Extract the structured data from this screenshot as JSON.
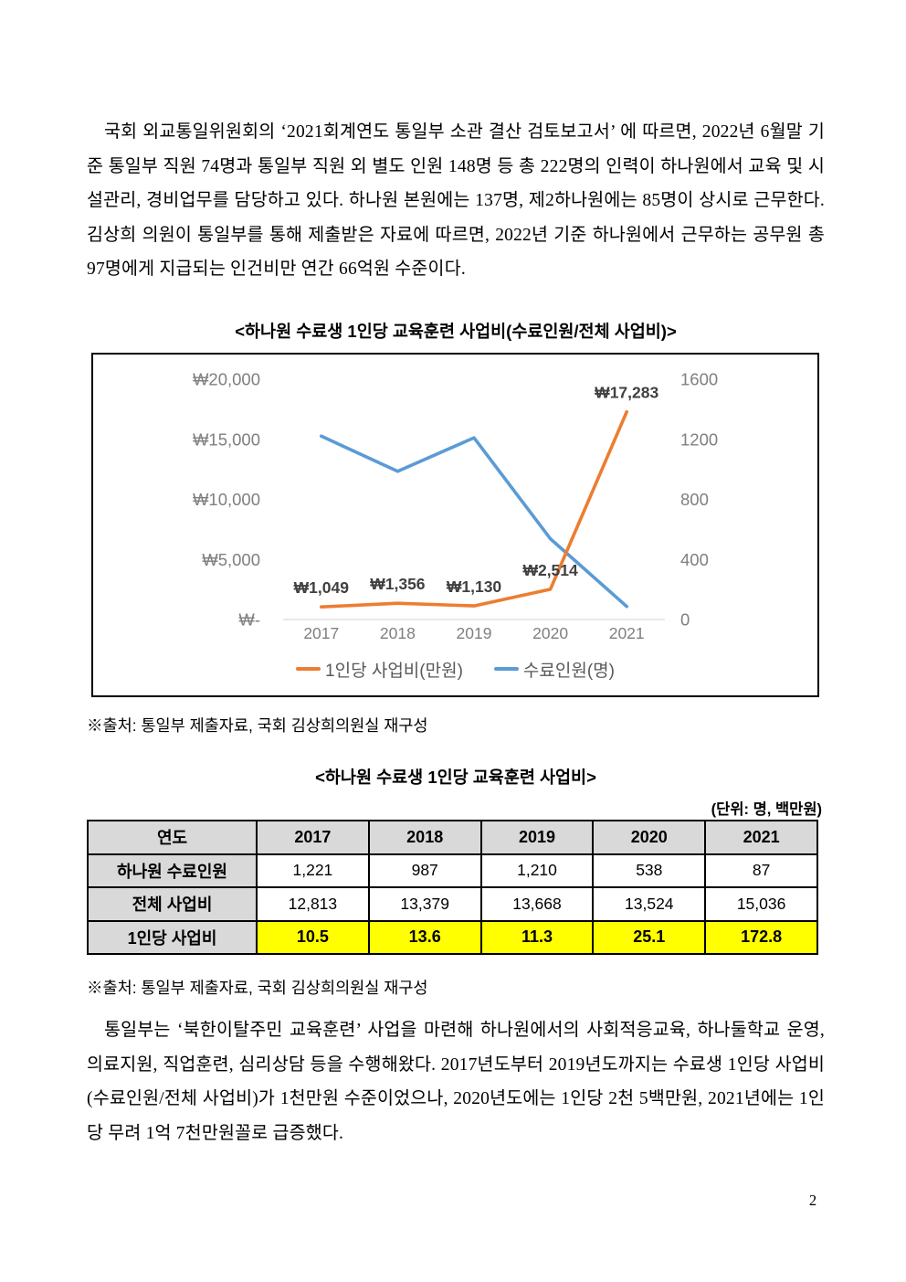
{
  "page": {
    "number": "2"
  },
  "paragraph1": "국회 외교통일위원회의 ‘2021회계연도 통일부 소관 결산 검토보고서’ 에 따르면, 2022년 6월말 기준 통일부 직원 74명과 통일부 직원 외 별도 인원 148명 등 총 222명의 인력이 하나원에서 교육 및 시설관리, 경비업무를 담당하고 있다. 하나원 본원에는 137명, 제2하나원에는 85명이 상시로 근무한다. 김상희 의원이 통일부를 통해 제출받은 자료에 따르면, 2022년 기준 하나원에서 근무하는 공무원 총 97명에게 지급되는 인건비만 연간 66억원 수준이다.",
  "chart_title": "<하나원 수료생 1인당 교육훈련 사업비(수료인원/전체 사업비)>",
  "chart_data": {
    "type": "line",
    "title": "<하나원 수료생 1인당 교육훈련 사업비(수료인원/전체 사업비)>",
    "categories": [
      "2017",
      "2018",
      "2019",
      "2020",
      "2021"
    ],
    "series": [
      {
        "name": "1인당 사업비(만원)",
        "axis": "left",
        "color": "#ED7D31",
        "values": [
          1049,
          1356,
          1130,
          2514,
          17283
        ],
        "point_labels": [
          "₩1,049",
          "₩1,356",
          "₩1,130",
          "₩2,514",
          "₩17,283"
        ]
      },
      {
        "name": "수료인원(명)",
        "axis": "right",
        "color": "#5B9BD5",
        "values": [
          1221,
          987,
          1210,
          538,
          87
        ],
        "point_labels": []
      }
    ],
    "left_axis": {
      "min": 0,
      "max": 20000,
      "tick_labels": [
        "₩20,000",
        "₩15,000",
        "₩10,000",
        "₩5,000",
        "₩-"
      ]
    },
    "right_axis": {
      "min": 0,
      "max": 1600,
      "tick_labels": [
        "1600",
        "1200",
        "800",
        "400",
        "0"
      ]
    },
    "legend_position": "bottom",
    "grid": false,
    "axis_text_color": "#7F7F7F",
    "data_label_color": "#404040",
    "baseline_color": "#D9D9D9"
  },
  "source_note_1": "※출처: 통일부 제출자료, 국회 김상희의원실 재구성",
  "table": {
    "title": "<하나원 수료생 1인당 교육훈련 사업비>",
    "unit_note": "(단위: 명, 백만원)",
    "header": [
      "연도",
      "2017",
      "2018",
      "2019",
      "2020",
      "2021"
    ],
    "rows": [
      {
        "label": "하나원 수료인원",
        "values": [
          "1,221",
          "987",
          "1,210",
          "538",
          "87"
        ],
        "highlight": false
      },
      {
        "label": "전체 사업비",
        "values": [
          "12,813",
          "13,379",
          "13,668",
          "13,524",
          "15,036"
        ],
        "highlight": false
      },
      {
        "label": "1인당 사업비",
        "values": [
          "10.5",
          "13.6",
          "11.3",
          "25.1",
          "172.8"
        ],
        "highlight": true
      }
    ],
    "header_bg": "#D9D9D9",
    "highlight_color": "#FFFF00"
  },
  "source_note_2": "※출처: 통일부 제출자료, 국회 김상희의원실 재구성",
  "paragraph2": "통일부는 ‘북한이탈주민 교육훈련’ 사업을 마련해 하나원에서의 사회적응교육, 하나둘학교 운영, 의료지원, 직업훈련, 심리상담 등을 수행해왔다. 2017년도부터 2019년도까지는 수료생 1인당 사업비(수료인원/전체 사업비)가 1천만원 수준이었으나, 2020년도에는 1인당 2천 5백만원, 2021년에는 1인당 무려 1억 7천만원꼴로 급증했다."
}
